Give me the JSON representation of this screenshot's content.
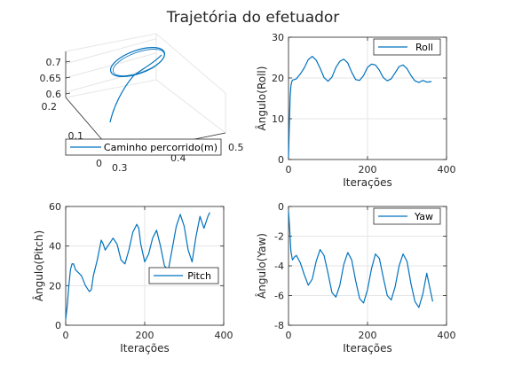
{
  "figure_title": "Trajetória do efetuador",
  "colors": {
    "line": "#0072BD",
    "axis": "#262626",
    "grid": "#e6e6e6"
  },
  "chart_data": [
    {
      "type": "line3d",
      "title": "",
      "legend": "Caminho percorrido(m)",
      "legend_position": "bottom",
      "x_ticks": [
        "0",
        "0.1",
        "0.2"
      ],
      "y_ticks": [
        "0.3",
        "0.4",
        "0.5"
      ],
      "z_ticks": [
        "0.6",
        "0.65",
        "0.7"
      ],
      "xlim": [
        0,
        0.2
      ],
      "ylim": [
        0.3,
        0.5
      ],
      "zlim": [
        0.6,
        0.7
      ],
      "path": {
        "start": [
          0.05,
          0.33,
          0.6
        ],
        "loop_center": [
          0.1,
          0.42,
          0.68
        ],
        "loop_radius": 0.07
      }
    },
    {
      "type": "line",
      "legend": "Roll",
      "legend_position": "top-right",
      "xlabel": "Iterações",
      "ylabel": "Ângulo(Roll)",
      "xlim": [
        0,
        400
      ],
      "ylim": [
        0,
        30
      ],
      "x_ticks": [
        "0",
        "200",
        "400"
      ],
      "y_ticks": [
        "0",
        "10",
        "20",
        "30"
      ],
      "x": [
        0,
        2,
        4,
        6,
        8,
        10,
        15,
        20,
        30,
        40,
        50,
        60,
        70,
        80,
        90,
        100,
        110,
        120,
        130,
        140,
        150,
        160,
        170,
        180,
        190,
        200,
        210,
        220,
        230,
        240,
        250,
        260,
        270,
        280,
        290,
        300,
        310,
        320,
        330,
        340,
        350,
        362
      ],
      "values": [
        0.5,
        8,
        15,
        18,
        19,
        19.5,
        19.6,
        19.8,
        21,
        22.5,
        24.5,
        25.3,
        24.4,
        22.4,
        20.1,
        19.2,
        20.2,
        22.6,
        24.1,
        24.6,
        23.7,
        21.4,
        19.6,
        19.4,
        20.6,
        22.6,
        23.4,
        23.2,
        21.9,
        20.1,
        19.3,
        19.8,
        21.3,
        22.8,
        23.2,
        22.3,
        20.6,
        19.3,
        18.9,
        19.4,
        19.0,
        19.1
      ]
    },
    {
      "type": "line",
      "legend": "Pitch",
      "legend_position": "bottom-right",
      "xlabel": "Iterações",
      "ylabel": "Ângulo(Pitch)",
      "xlim": [
        0,
        400
      ],
      "ylim": [
        0,
        60
      ],
      "x_ticks": [
        "0",
        "200",
        "400"
      ],
      "y_ticks": [
        "0",
        "20",
        "40",
        "60"
      ],
      "x": [
        0,
        4,
        8,
        12,
        16,
        20,
        25,
        30,
        40,
        50,
        60,
        65,
        70,
        80,
        90,
        95,
        100,
        110,
        120,
        130,
        140,
        150,
        160,
        170,
        180,
        185,
        190,
        200,
        210,
        220,
        230,
        240,
        250,
        260,
        270,
        280,
        290,
        300,
        310,
        320,
        330,
        340,
        350,
        360,
        365
      ],
      "values": [
        3,
        10,
        20,
        28,
        31,
        31,
        28,
        27,
        25,
        20,
        17,
        18,
        25,
        33,
        43,
        41,
        38,
        41,
        44,
        41,
        33,
        31,
        38,
        47,
        51,
        49,
        41,
        32,
        36,
        44,
        48,
        40,
        30,
        28,
        39,
        50,
        56,
        50,
        38,
        32,
        45,
        55,
        49,
        55,
        57
      ]
    },
    {
      "type": "line",
      "legend": "Yaw",
      "legend_position": "top-right",
      "xlabel": "Iterações",
      "ylabel": "Ângulo(Yaw)",
      "xlim": [
        0,
        400
      ],
      "ylim": [
        -8,
        0
      ],
      "x_ticks": [
        "0",
        "200",
        "400"
      ],
      "y_ticks": [
        "0",
        "-2",
        "-4",
        "-6",
        "-8"
      ],
      "x": [
        0,
        3,
        6,
        10,
        15,
        20,
        30,
        40,
        50,
        60,
        70,
        80,
        90,
        100,
        110,
        120,
        130,
        140,
        150,
        160,
        170,
        180,
        190,
        200,
        210,
        220,
        230,
        240,
        250,
        260,
        270,
        280,
        290,
        300,
        310,
        320,
        330,
        340,
        350,
        365
      ],
      "values": [
        -0.3,
        -1.5,
        -3.0,
        -3.6,
        -3.4,
        -3.3,
        -3.8,
        -4.6,
        -5.3,
        -4.9,
        -3.7,
        -2.9,
        -3.3,
        -4.5,
        -5.8,
        -6.1,
        -5.3,
        -3.9,
        -3.1,
        -3.6,
        -5.0,
        -6.2,
        -6.5,
        -5.6,
        -4.2,
        -3.2,
        -3.5,
        -4.8,
        -6.0,
        -6.3,
        -5.4,
        -4.0,
        -3.2,
        -3.7,
        -5.2,
        -6.4,
        -6.8,
        -5.9,
        -4.5,
        -6.4
      ]
    }
  ]
}
